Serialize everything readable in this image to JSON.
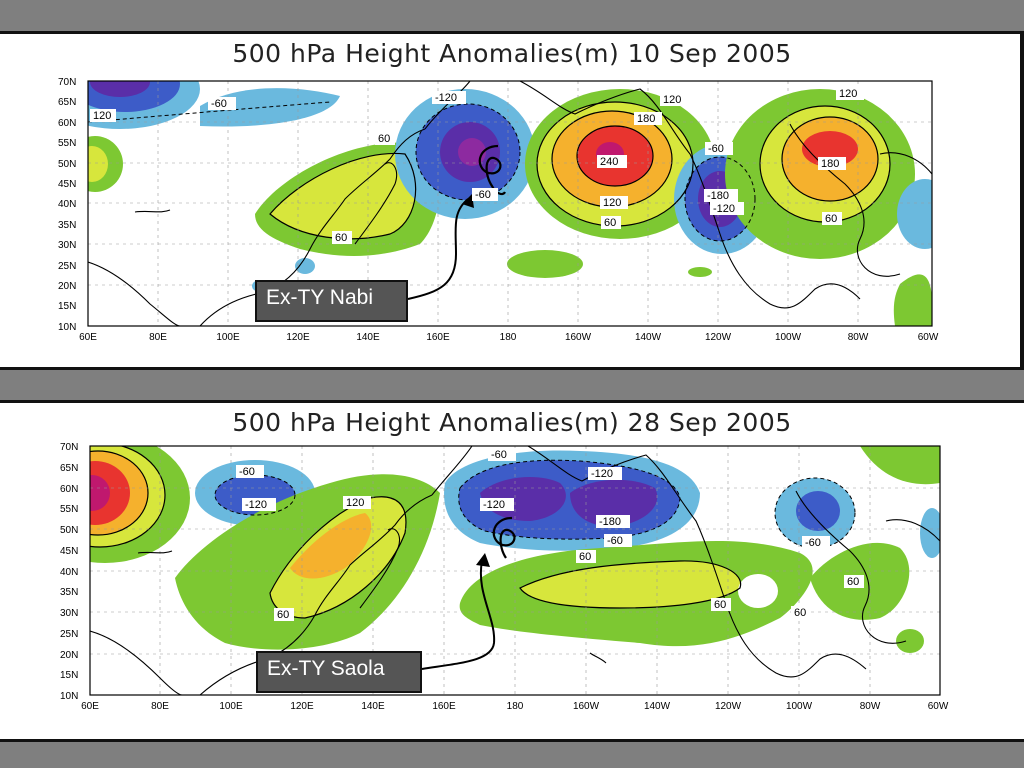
{
  "panels": [
    {
      "title": "500 hPa Height Anomalies(m) 10 Sep 2005",
      "callout": "Ex-TY Nabi",
      "contour_labels": [
        "-60",
        "120",
        "-120",
        "60",
        "-60",
        "120",
        "180",
        "240",
        "-60",
        "120",
        "60",
        "-180",
        "-120",
        "120",
        "180",
        "60",
        "60"
      ]
    },
    {
      "title": "500 hPa Height Anomalies(m) 28 Sep 2005",
      "callout": "Ex-TY Saola",
      "contour_labels": [
        "-60",
        "-120",
        "120",
        "60",
        "-60",
        "-120",
        "-120",
        "-180",
        "-60",
        "60",
        "60",
        "60",
        "-60",
        "60"
      ]
    }
  ],
  "lat_labels": [
    "70N",
    "65N",
    "60N",
    "55N",
    "50N",
    "45N",
    "40N",
    "35N",
    "30N",
    "25N",
    "20N",
    "15N",
    "10N"
  ],
  "lon_labels": [
    "60E",
    "80E",
    "100E",
    "120E",
    "140E",
    "160E",
    "180",
    "160W",
    "140W",
    "120W",
    "100W",
    "80W",
    "60W"
  ],
  "colors": {
    "pos_60": "#7dc832",
    "pos_120": "#d7e63c",
    "pos_180": "#f5b12d",
    "pos_240": "#e8342f",
    "pos_300": "#c0186e",
    "neg_60": "#6ab9de",
    "neg_120": "#3d5cc8",
    "neg_180": "#5a2ea8",
    "neg_240": "#8d2aa0"
  }
}
